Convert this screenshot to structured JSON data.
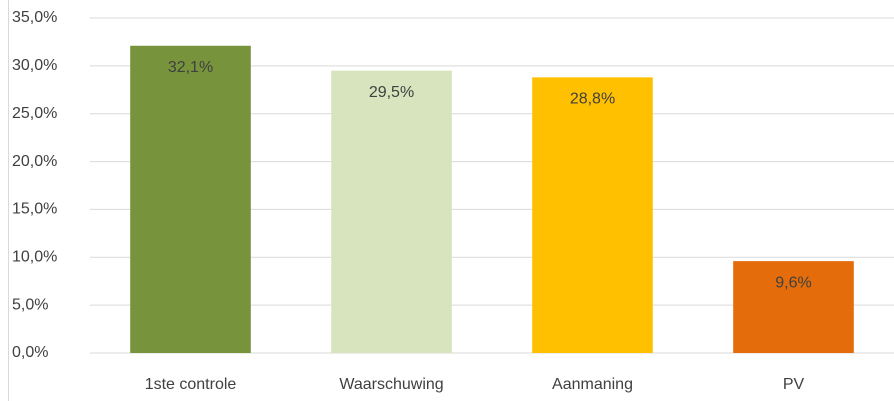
{
  "chart_data": {
    "type": "bar",
    "categories": [
      "1ste controle",
      "Waarschuwing",
      "Aanmaning",
      "PV"
    ],
    "values": [
      32.1,
      29.5,
      28.8,
      9.6
    ],
    "value_labels": [
      "32,1%",
      "29,5%",
      "28,8%",
      "9,6%"
    ],
    "colors": [
      "#77933c",
      "#d7e4bd",
      "#ffc000",
      "#e46c0a"
    ],
    "ylim": [
      0,
      35
    ],
    "yticks": [
      {
        "value": 0,
        "label": "0,0%"
      },
      {
        "value": 5,
        "label": "5,0%"
      },
      {
        "value": 10,
        "label": "10,0%"
      },
      {
        "value": 15,
        "label": "15,0%"
      },
      {
        "value": 20,
        "label": "20,0%"
      },
      {
        "value": 25,
        "label": "25,0%"
      },
      {
        "value": 30,
        "label": "30,0%"
      },
      {
        "value": 35,
        "label": "35,0%"
      }
    ],
    "grid": true
  }
}
